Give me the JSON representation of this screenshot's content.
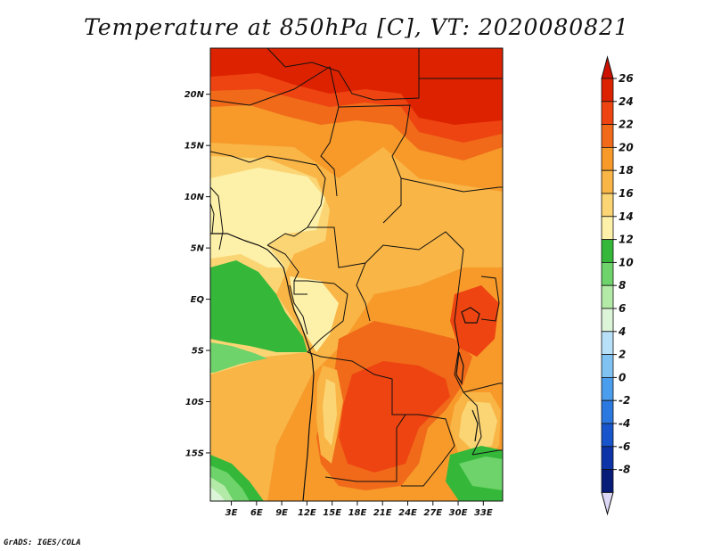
{
  "title": "Temperature at 850hPa [C], VT: 2020080821",
  "credit": "GrADS: IGES/COLA",
  "map": {
    "variable": "Temperature at 850hPa",
    "units": "C",
    "valid_time": "2020080821",
    "lat_ticks": [
      {
        "lat": 20,
        "label": "20N"
      },
      {
        "lat": 15,
        "label": "15N"
      },
      {
        "lat": 10,
        "label": "10N"
      },
      {
        "lat": 5,
        "label": "5N"
      },
      {
        "lat": 0,
        "label": "EQ"
      },
      {
        "lat": -5,
        "label": "5S"
      },
      {
        "lat": -10,
        "label": "10S"
      },
      {
        "lat": -15,
        "label": "15S"
      }
    ],
    "lon_ticks": [
      {
        "lon": 3,
        "label": "3E"
      },
      {
        "lon": 6,
        "label": "6E"
      },
      {
        "lon": 9,
        "label": "9E"
      },
      {
        "lon": 12,
        "label": "12E"
      },
      {
        "lon": 15,
        "label": "15E"
      },
      {
        "lon": 18,
        "label": "18E"
      },
      {
        "lon": 21,
        "label": "21E"
      },
      {
        "lon": 24,
        "label": "24E"
      },
      {
        "lon": 27,
        "label": "27E"
      },
      {
        "lon": 30,
        "label": "30E"
      },
      {
        "lon": 33,
        "label": "33E"
      }
    ],
    "lat_range": [
      -19.7,
      24.5
    ],
    "lon_range": [
      0.5,
      35.3
    ]
  },
  "colorbar": {
    "levels": [
      {
        "label": "26",
        "color": "#dd2200"
      },
      {
        "label": "24",
        "color": "#ee4411"
      },
      {
        "label": "22",
        "color": "#f06a1a"
      },
      {
        "label": "20",
        "color": "#f79a2a"
      },
      {
        "label": "18",
        "color": "#f9b546"
      },
      {
        "label": "16",
        "color": "#fbd574"
      },
      {
        "label": "14",
        "color": "#fdf0a8"
      },
      {
        "label": "12",
        "color": "#35b83a"
      },
      {
        "label": "10",
        "color": "#6dd36a"
      },
      {
        "label": "8",
        "color": "#b4eaa8"
      },
      {
        "label": "6",
        "color": "#dcf5d8"
      },
      {
        "label": "4",
        "color": "#b8e0f8"
      },
      {
        "label": "2",
        "color": "#80c3f2"
      },
      {
        "label": "0",
        "color": "#4b9ded"
      },
      {
        "label": "-2",
        "color": "#2a78e0"
      },
      {
        "label": "-4",
        "color": "#1855cc"
      },
      {
        "label": "-6",
        "color": "#0c33a8"
      },
      {
        "label": "-8",
        "color": "#071b78"
      }
    ],
    "top_arrow_color": "#cc1100",
    "bottom_arrow_color": "#dcd8f5"
  }
}
